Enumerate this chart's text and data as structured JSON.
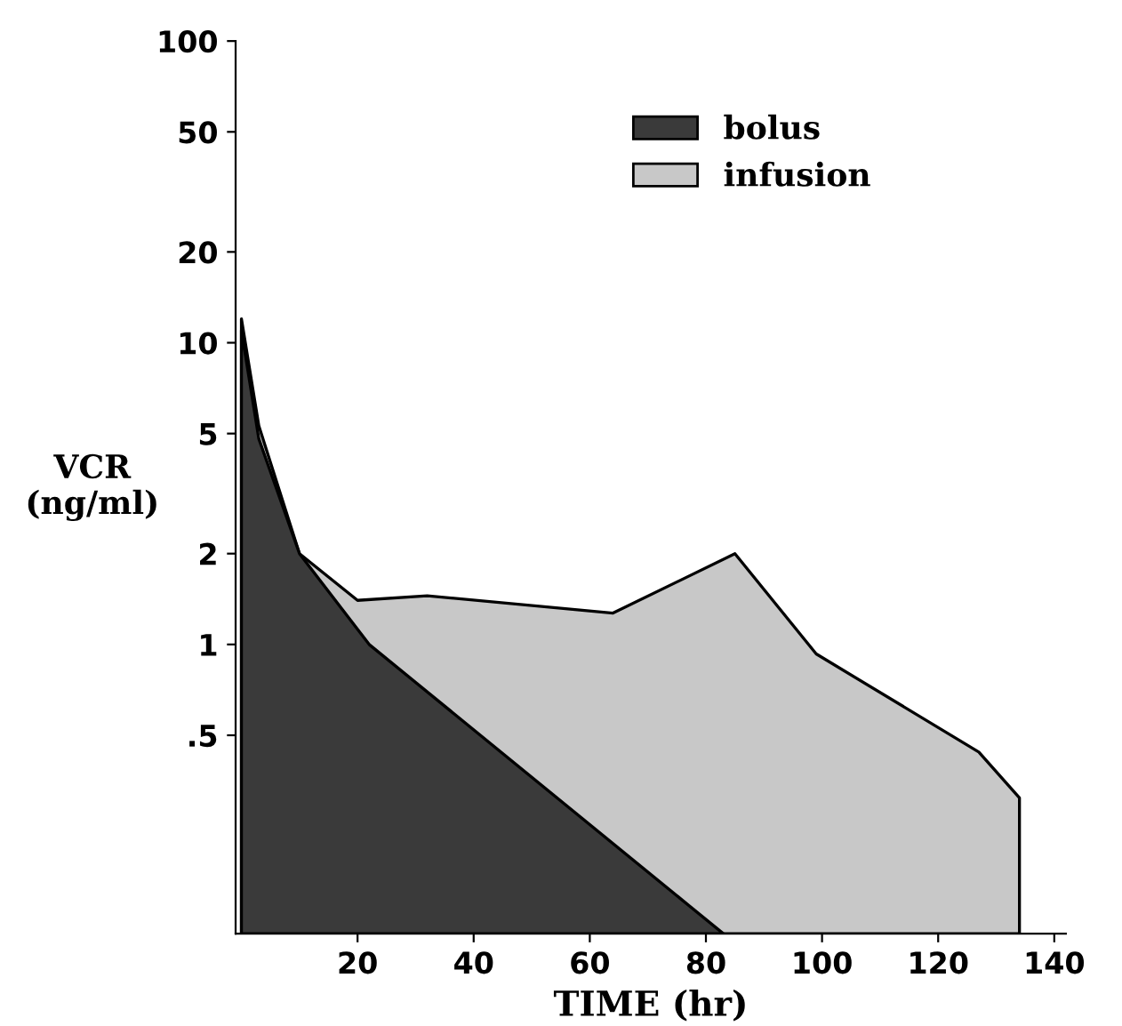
{
  "chart_data": {
    "type": "area",
    "xlabel": "TIME (hr)",
    "ylabel": "VCR\n(ng/ml)",
    "log": "y",
    "xlim": [
      -1,
      142
    ],
    "ylim": [
      0.11,
      100
    ],
    "xticks": [
      20,
      40,
      60,
      80,
      100,
      120,
      140
    ],
    "yticks": [
      {
        "value": 0.5,
        "label": ".5"
      },
      1,
      2,
      5,
      10,
      20,
      50,
      100
    ],
    "legend": "top right",
    "grid": false,
    "series": [
      {
        "name": "infusion",
        "color": "#c8c8c8",
        "x": [
          0,
          3,
          10,
          20,
          32,
          64,
          85,
          99,
          127,
          134
        ],
        "values": [
          12,
          5.3,
          2,
          1.4,
          1.45,
          1.27,
          2,
          0.93,
          0.44,
          0.31
        ]
      },
      {
        "name": "bolus",
        "color": "#3a3a3a",
        "x": [
          0,
          3,
          10,
          22,
          83
        ],
        "values": [
          11,
          4.8,
          2,
          1,
          0.11
        ]
      }
    ]
  }
}
